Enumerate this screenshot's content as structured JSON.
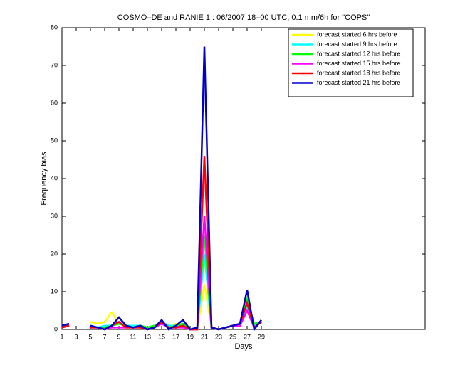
{
  "chart_data": {
    "type": "line",
    "title": "COSMO–DE and RANIE 1 : 06/2007 18–00 UTC, 0.1 mm/6h for \"COPS\"",
    "x_label": "Days",
    "y_label": "Frequency bias",
    "x": [
      1,
      2,
      3,
      4,
      5,
      6,
      7,
      8,
      9,
      10,
      11,
      12,
      13,
      14,
      15,
      16,
      17,
      18,
      19,
      20,
      21,
      22,
      23,
      24,
      25,
      26,
      27,
      28,
      29
    ],
    "xlim": [
      1,
      52
    ],
    "xticks": [
      1,
      3,
      5,
      7,
      9,
      11,
      13,
      15,
      17,
      19,
      21,
      23,
      25,
      27,
      29
    ],
    "ylim": [
      0,
      80
    ],
    "yticks": [
      0,
      10,
      20,
      30,
      40,
      50,
      60,
      70,
      80
    ],
    "legend": "upper right",
    "series": [
      {
        "name": "forecast started 6 hrs before",
        "color": "#ffff00",
        "values": [
          0.5,
          1.5,
          null,
          null,
          2,
          1.5,
          2,
          4.5,
          1.5,
          1,
          0.5,
          1,
          0.5,
          1,
          2,
          0.5,
          1.5,
          1,
          0,
          0,
          12,
          0.5,
          0,
          0.5,
          1,
          1.5,
          5,
          1,
          2
        ]
      },
      {
        "name": "forecast started 9 hrs before",
        "color": "#00ffff",
        "values": [
          0.5,
          1,
          null,
          null,
          1,
          0.5,
          1,
          1,
          1.5,
          1,
          1,
          1,
          0.5,
          1,
          2,
          1,
          1,
          1.5,
          0,
          0,
          20,
          0.5,
          0,
          0.5,
          1,
          1.5,
          6,
          1,
          2
        ]
      },
      {
        "name": "forecast started 12 hrs before",
        "color": "#00ff00",
        "values": [
          0.5,
          1,
          null,
          null,
          1,
          0.5,
          0.5,
          1,
          1.5,
          1,
          0.5,
          1,
          0.5,
          1,
          2,
          0.5,
          1,
          1.5,
          0,
          0,
          25,
          0.5,
          0,
          0.5,
          1,
          1.5,
          8,
          1.5,
          2
        ]
      },
      {
        "name": "forecast started 15 hrs before",
        "color": "#ff00ff",
        "values": [
          0.5,
          1,
          null,
          null,
          0.5,
          0.5,
          0,
          0.5,
          0.5,
          0.5,
          0.5,
          0.5,
          0,
          0.5,
          1.5,
          0.5,
          0.5,
          0.5,
          0,
          0,
          30,
          0.5,
          0,
          0.5,
          1,
          1,
          5,
          0.5,
          2
        ]
      },
      {
        "name": "forecast started 18 hrs before",
        "color": "#ff0000",
        "values": [
          0.5,
          1,
          null,
          null,
          0.5,
          0.5,
          0,
          1,
          2,
          0.5,
          0.5,
          0.5,
          0,
          0.5,
          2,
          0.5,
          0.5,
          1,
          0,
          0,
          46,
          0.5,
          0,
          0.5,
          1,
          1.5,
          7,
          0.5,
          2
        ]
      },
      {
        "name": "forecast started 21 hrs before",
        "color": "#0000cc",
        "values": [
          1,
          1.5,
          null,
          null,
          1,
          0.5,
          0,
          1,
          3.2,
          1,
          0.5,
          1,
          0,
          0.5,
          2.5,
          0,
          1,
          2.5,
          0,
          0.5,
          75,
          0.5,
          0,
          0.5,
          1,
          1.5,
          10.5,
          0,
          2.5
        ]
      }
    ]
  }
}
